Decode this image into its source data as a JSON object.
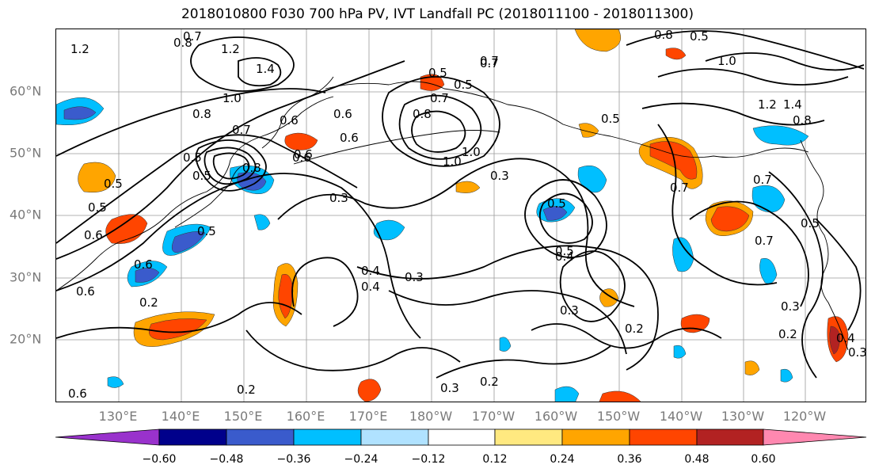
{
  "title": "2018010800 F030 700 hPa PV, IVT Landfall PC (2018011100 - 2018011300)",
  "axes": {
    "lat_labels": [
      "60°N",
      "50°N",
      "40°N",
      "30°N",
      "20°N"
    ],
    "lon_labels": [
      "130°E",
      "140°E",
      "150°E",
      "160°E",
      "170°E",
      "180°W",
      "170°W",
      "160°W",
      "150°W",
      "140°W",
      "130°W",
      "120°W"
    ]
  },
  "colorbar": {
    "ticks": [
      "−0.60",
      "−0.48",
      "−0.36",
      "−0.24",
      "−0.12",
      "0.12",
      "0.24",
      "0.36",
      "0.48",
      "0.60"
    ],
    "colors": [
      "#9932cc",
      "#00008b",
      "#3a5bcc",
      "#00bfff",
      "#b0e2ff",
      "#ffffff",
      "#ffe980",
      "#ffa500",
      "#ff4500",
      "#b22222",
      "#ff88b0"
    ]
  },
  "contour_labels": [
    "1.2",
    "0.8",
    "0.7",
    "1.2",
    "1.4",
    "1.0",
    "0.8",
    "0.6",
    "0.7",
    "0.5",
    "0.6",
    "0.8",
    "0.5",
    "0.6",
    "0.7",
    "0.6",
    "0.7",
    "0.5",
    "0.8",
    "1.0",
    "0.6",
    "1.0",
    "0.3",
    "0.5",
    "0.5",
    "0.6",
    "0.6",
    "0.5",
    "0.3",
    "0.4",
    "0.2",
    "0.3",
    "0.4",
    "0.6",
    "0.5",
    "0.3",
    "0.6",
    "0.5",
    "0.2",
    "0.7",
    "0.5",
    "0.8",
    "1.0",
    "1.2",
    "1.4",
    "0.8",
    "0.5",
    "0.7",
    "0.7",
    "0.5",
    "0.7",
    "0.5",
    "0.4",
    "0.3",
    "0.2",
    "0.4",
    "0.2",
    "0.3",
    "0.2",
    "0.3"
  ]
}
